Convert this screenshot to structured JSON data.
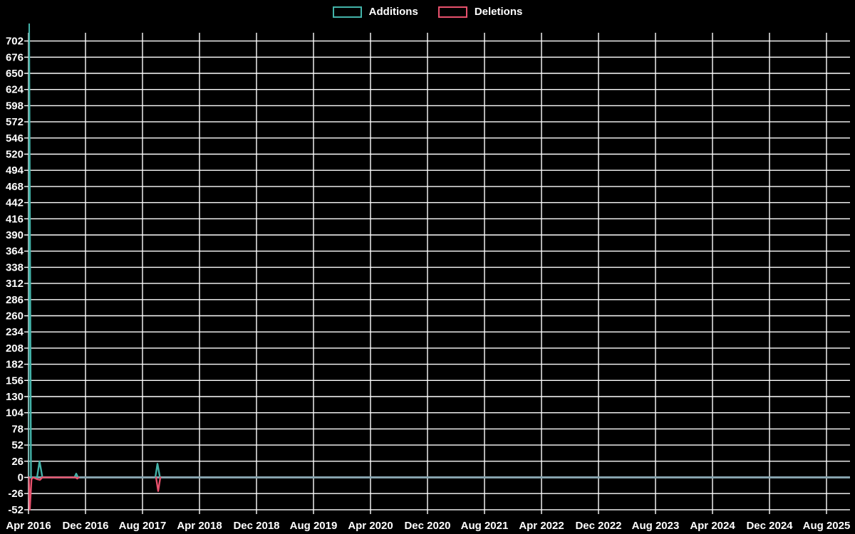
{
  "page": {
    "background": "#000000",
    "text_color": "#ffffff",
    "grid_color": "#ffffff",
    "zero_line_color": "#86a3ae"
  },
  "legend": {
    "items": [
      {
        "label": "Additions",
        "color": "#43b3a9",
        "swatch": "additions-swatch"
      },
      {
        "label": "Deletions",
        "color": "#e8516d",
        "swatch": "deletions-swatch"
      }
    ]
  },
  "chart_data": {
    "type": "line",
    "title": "",
    "xlabel": "",
    "ylabel": "",
    "grid": true,
    "legend_position": "top-center",
    "x_axis": {
      "tick_labels": [
        "Apr 2016",
        "Dec 2016",
        "Aug 2017",
        "Apr 2018",
        "Dec 2018",
        "Aug 2019",
        "Apr 2020",
        "Dec 2020",
        "Aug 2021",
        "Apr 2022",
        "Dec 2022",
        "Aug 2023",
        "Apr 2024",
        "Dec 2024",
        "Aug 2025"
      ],
      "tick_interval_months": 8
    },
    "y_axis": {
      "tick_labels": [
        702,
        676,
        650,
        624,
        598,
        572,
        546,
        520,
        494,
        468,
        442,
        416,
        390,
        364,
        338,
        312,
        286,
        260,
        234,
        208,
        182,
        156,
        130,
        104,
        78,
        52,
        26,
        0,
        -26,
        -52
      ],
      "tick_step": 26,
      "ylim": [
        -52,
        733
      ]
    },
    "notes": "Additions spike at Apr 2016 is clipped at the plot top (~730, above the 702 tick). Zero baseline drawn as muted steel-blue line across full width; colored series lines only visible near active weeks (Apr 2016 - Nov 2016, and Oct 2017).",
    "series": [
      {
        "name": "Additions",
        "color": "#43b3a9",
        "key_points": [
          {
            "x": "Apr 2016",
            "y": 730
          },
          {
            "x": "May 2016",
            "y": 26
          },
          {
            "x": "Nov 2016",
            "y": 6
          },
          {
            "x": "Oct 2017",
            "y": 22
          }
        ],
        "polyline_segments_months_value": [
          [
            [
              0,
              0
            ],
            [
              0.08,
              733
            ],
            [
              0.35,
              0
            ],
            [
              1.2,
              0
            ],
            [
              1.55,
              26
            ],
            [
              1.95,
              0
            ],
            [
              6.45,
              0
            ],
            [
              6.7,
              6
            ],
            [
              6.95,
              0
            ]
          ],
          [
            [
              17.8,
              0
            ],
            [
              18.1,
              22
            ],
            [
              18.45,
              0
            ]
          ]
        ]
      },
      {
        "name": "Deletions",
        "color": "#e8516d",
        "key_points": [
          {
            "x": "Apr 2016",
            "y": -52
          },
          {
            "x": "May 2016",
            "y": -4
          },
          {
            "x": "Nov 2016",
            "y": -2
          },
          {
            "x": "Oct 2017",
            "y": -22
          }
        ],
        "polyline_segments_months_value": [
          [
            [
              0.05,
              0
            ],
            [
              0.18,
              -52
            ],
            [
              0.42,
              -3
            ],
            [
              0.65,
              0
            ],
            [
              1.25,
              -3
            ],
            [
              1.6,
              -4
            ],
            [
              1.95,
              0
            ],
            [
              6.6,
              0
            ],
            [
              6.85,
              -2
            ],
            [
              7.05,
              0
            ]
          ],
          [
            [
              17.9,
              0
            ],
            [
              18.2,
              -22
            ],
            [
              18.5,
              0
            ]
          ]
        ]
      }
    ]
  }
}
